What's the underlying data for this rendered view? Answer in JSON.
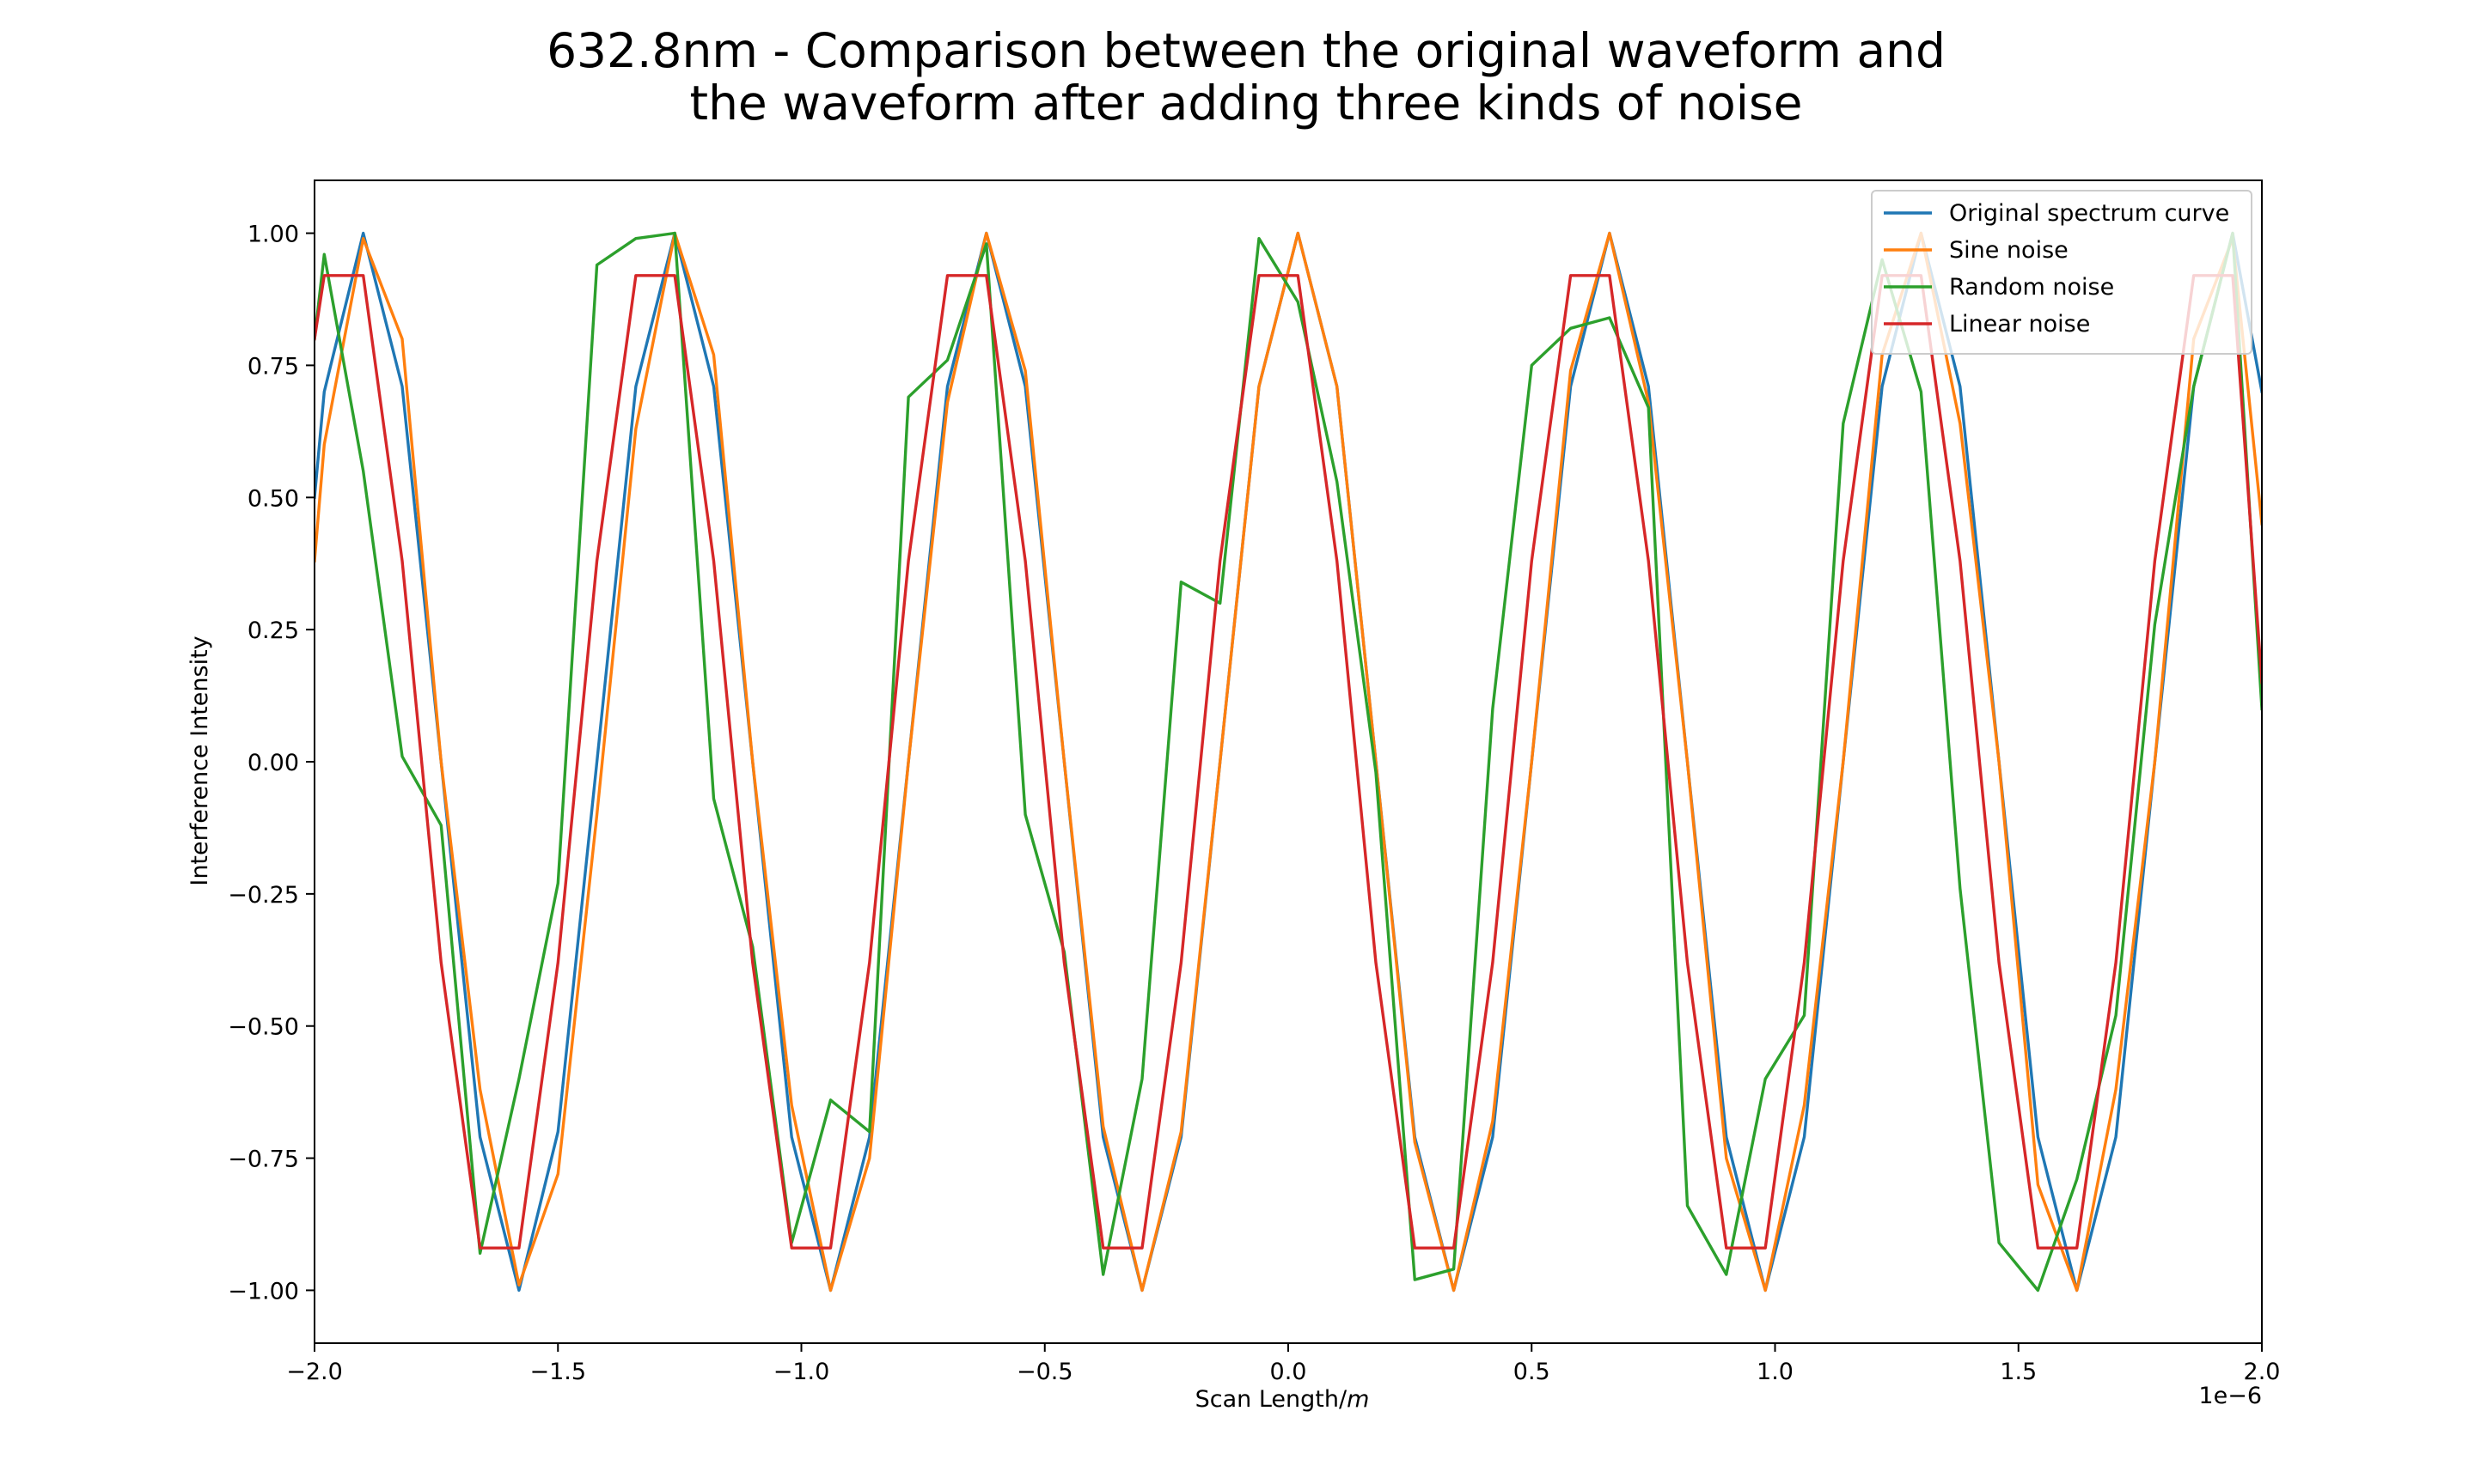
{
  "chart_data": {
    "type": "line",
    "title_lines": [
      "632.8nm - Comparison between the original waveform and",
      "the waveform after adding three kinds of noise"
    ],
    "xlabel_text": "Scan Length/",
    "xlabel_italic": "m",
    "ylabel": "Interference Intensity",
    "x_offset_label": "1e−6",
    "xlim": [
      -2.0,
      2.0
    ],
    "ylim": [
      -1.1,
      1.1
    ],
    "xticks": [
      -2.0,
      -1.5,
      -1.0,
      -0.5,
      0.0,
      0.5,
      1.0,
      1.5,
      2.0
    ],
    "xtick_labels": [
      "−2.0",
      "−1.5",
      "−1.0",
      "−0.5",
      "0.0",
      "0.5",
      "1.0",
      "1.5",
      "2.0"
    ],
    "yticks": [
      1.0,
      0.75,
      0.5,
      0.25,
      0.0,
      -0.25,
      -0.5,
      -0.75,
      -1.0
    ],
    "ytick_labels": [
      "1.00",
      "0.75",
      "0.50",
      "0.25",
      "0.00",
      "−0.25",
      "−0.50",
      "−0.75",
      "−1.00"
    ],
    "grid": false,
    "legend_position": "upper right",
    "x": [
      -2.0,
      -1.98,
      -1.9,
      -1.82,
      -1.74,
      -1.66,
      -1.58,
      -1.5,
      -1.42,
      -1.34,
      -1.26,
      -1.18,
      -1.1,
      -1.02,
      -0.94,
      -0.86,
      -0.78,
      -0.7,
      -0.62,
      -0.54,
      -0.46,
      -0.38,
      -0.3,
      -0.22,
      -0.14,
      -0.06,
      0.02,
      0.1,
      0.18,
      0.26,
      0.34,
      0.42,
      0.5,
      0.58,
      0.66,
      0.74,
      0.82,
      0.9,
      0.98,
      1.06,
      1.14,
      1.22,
      1.3,
      1.38,
      1.46,
      1.54,
      1.62,
      1.7,
      1.78,
      1.86,
      1.94,
      2.0
    ],
    "series": [
      {
        "name": "Original spectrum curve",
        "color": "#1f77b4",
        "values": [
          0.5,
          0.7,
          1.0,
          0.71,
          0.0,
          -0.71,
          -1.0,
          -0.7,
          0.0,
          0.71,
          1.0,
          0.71,
          0.0,
          -0.71,
          -1.0,
          -0.71,
          0.0,
          0.71,
          1.0,
          0.71,
          0.0,
          -0.71,
          -1.0,
          -0.71,
          0.0,
          0.71,
          1.0,
          0.71,
          0.0,
          -0.71,
          -1.0,
          -0.71,
          0.0,
          0.71,
          1.0,
          0.71,
          0.0,
          -0.71,
          -1.0,
          -0.71,
          0.0,
          0.71,
          1.0,
          0.71,
          0.0,
          -0.71,
          -1.0,
          -0.71,
          0.0,
          0.71,
          1.0,
          0.7
        ]
      },
      {
        "name": "Sine noise",
        "color": "#ff7f0e",
        "values": [
          0.38,
          0.6,
          0.99,
          0.8,
          0.0,
          -0.62,
          -0.99,
          -0.78,
          -0.1,
          0.63,
          1.0,
          0.77,
          0.0,
          -0.65,
          -1.0,
          -0.75,
          0.0,
          0.68,
          1.0,
          0.74,
          0.0,
          -0.69,
          -1.0,
          -0.7,
          0.0,
          0.71,
          1.0,
          0.71,
          0.0,
          -0.72,
          -1.0,
          -0.68,
          0.0,
          0.74,
          1.0,
          0.68,
          0.0,
          -0.75,
          -1.0,
          -0.65,
          0.0,
          0.77,
          1.0,
          0.64,
          0.0,
          -0.8,
          -1.0,
          -0.62,
          0.0,
          0.8,
          0.99,
          0.45
        ]
      },
      {
        "name": "Random noise",
        "color": "#2ca02c",
        "values": [
          0.8,
          0.96,
          0.55,
          0.01,
          -0.12,
          -0.93,
          -0.6,
          -0.23,
          0.94,
          0.99,
          1.0,
          -0.07,
          -0.35,
          -0.91,
          -0.64,
          -0.7,
          0.69,
          0.76,
          0.98,
          -0.1,
          -0.36,
          -0.97,
          -0.6,
          0.34,
          0.3,
          0.99,
          0.87,
          0.53,
          -0.02,
          -0.98,
          -0.96,
          0.1,
          0.75,
          0.82,
          0.84,
          0.67,
          -0.84,
          -0.97,
          -0.6,
          -0.48,
          0.64,
          0.95,
          0.7,
          -0.24,
          -0.91,
          -1.0,
          -0.79,
          -0.48,
          0.26,
          0.71,
          1.0,
          0.1
        ]
      },
      {
        "name": "Linear noise",
        "color": "#d62728",
        "values": [
          0.8,
          0.92,
          0.92,
          0.38,
          -0.38,
          -0.92,
          -0.92,
          -0.38,
          0.38,
          0.92,
          0.92,
          0.38,
          -0.38,
          -0.92,
          -0.92,
          -0.38,
          0.38,
          0.92,
          0.92,
          0.38,
          -0.38,
          -0.92,
          -0.92,
          -0.38,
          0.38,
          0.92,
          0.92,
          0.38,
          -0.38,
          -0.92,
          -0.92,
          -0.38,
          0.38,
          0.92,
          0.92,
          0.38,
          -0.38,
          -0.92,
          -0.92,
          -0.38,
          0.38,
          0.92,
          0.92,
          0.38,
          -0.38,
          -0.92,
          -0.92,
          -0.38,
          0.38,
          0.92,
          0.92,
          0.15
        ]
      }
    ]
  }
}
